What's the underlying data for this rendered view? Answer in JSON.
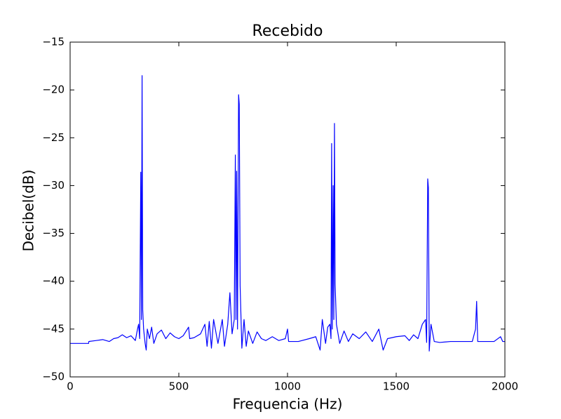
{
  "chart_data": {
    "type": "line",
    "title": "Recebido",
    "xlabel": "Frequencia (Hz)",
    "ylabel": "Decibel(dB)",
    "x": [
      0,
      85,
      86,
      120,
      150,
      180,
      200,
      220,
      240,
      260,
      280,
      300,
      310,
      315,
      320,
      325,
      328,
      331,
      334,
      338,
      345,
      350,
      355,
      365,
      375,
      385,
      400,
      420,
      440,
      460,
      480,
      500,
      520,
      545,
      550,
      570,
      600,
      620,
      630,
      640,
      650,
      660,
      680,
      700,
      710,
      725,
      735,
      745,
      755,
      760,
      763,
      766,
      770,
      775,
      778,
      782,
      790,
      800,
      810,
      820,
      840,
      860,
      880,
      900,
      930,
      960,
      990,
      1000,
      1005,
      1050,
      1100,
      1130,
      1150,
      1160,
      1175,
      1185,
      1195,
      1200,
      1203,
      1206,
      1210,
      1213,
      1216,
      1219,
      1225,
      1240,
      1260,
      1280,
      1300,
      1330,
      1360,
      1390,
      1420,
      1440,
      1460,
      1500,
      1540,
      1560,
      1580,
      1600,
      1620,
      1635,
      1640,
      1645,
      1648,
      1652,
      1660,
      1675,
      1700,
      1750,
      1800,
      1850,
      1865,
      1870,
      1875,
      1900,
      1950,
      1980,
      1990,
      2000
    ],
    "series": [
      {
        "name": "Recebido",
        "color": "#0000ff",
        "values": [
          -46.5,
          -46.5,
          -46.3,
          -46.2,
          -46.1,
          -46.3,
          -46.0,
          -45.9,
          -45.6,
          -45.9,
          -45.7,
          -46.2,
          -45.0,
          -44.5,
          -46.0,
          -28.6,
          -44,
          -18.5,
          -43,
          -45,
          -46.5,
          -47.2,
          -45,
          -46,
          -44.8,
          -46.5,
          -45.5,
          -45.1,
          -46.0,
          -45.4,
          -45.8,
          -46.0,
          -45.7,
          -44.8,
          -46.0,
          -45.9,
          -45.5,
          -44.5,
          -46.8,
          -44.2,
          -47.0,
          -44.0,
          -46.5,
          -44.0,
          -46.8,
          -44.5,
          -41.2,
          -45.5,
          -44,
          -26.8,
          -44,
          -28.5,
          -45,
          -20.5,
          -21.5,
          -40.5,
          -47,
          -44,
          -46.8,
          -45.2,
          -46.5,
          -45.3,
          -46.0,
          -46.2,
          -45.8,
          -46.2,
          -46.0,
          -45.0,
          -46.3,
          -46.3,
          -46.0,
          -45.8,
          -47.2,
          -44,
          -46.5,
          -44.8,
          -44.5,
          -46,
          -25.6,
          -45,
          -30,
          -44,
          -23.5,
          -40.3,
          -44.5,
          -46.5,
          -45.2,
          -46.3,
          -45.5,
          -46.0,
          -45.3,
          -46.3,
          -45.0,
          -47.2,
          -46.0,
          -45.8,
          -45.7,
          -46.2,
          -45.6,
          -46.0,
          -44.5,
          -44.0,
          -46.4,
          -29.3,
          -30.2,
          -47.3,
          -44.5,
          -46.3,
          -46.4,
          -46.3,
          -46.3,
          -46.3,
          -45.0,
          -42.1,
          -46.3,
          -46.3,
          -46.3,
          -45.8,
          -46.3,
          -46.3
        ]
      }
    ],
    "xlim": [
      0,
      2000
    ],
    "xticks": [
      0,
      500,
      1000,
      1500,
      2000
    ],
    "ylim": [
      -50,
      -15
    ],
    "yticks": [
      {
        "value": -50,
        "label": "−50"
      },
      {
        "value": -45,
        "label": "−45"
      },
      {
        "value": -40,
        "label": "−40"
      },
      {
        "value": -35,
        "label": "−35"
      },
      {
        "value": -30,
        "label": "−30"
      },
      {
        "value": -25,
        "label": "−25"
      },
      {
        "value": -20,
        "label": "−20"
      },
      {
        "value": -15,
        "label": "−15"
      }
    ],
    "grid": false
  }
}
